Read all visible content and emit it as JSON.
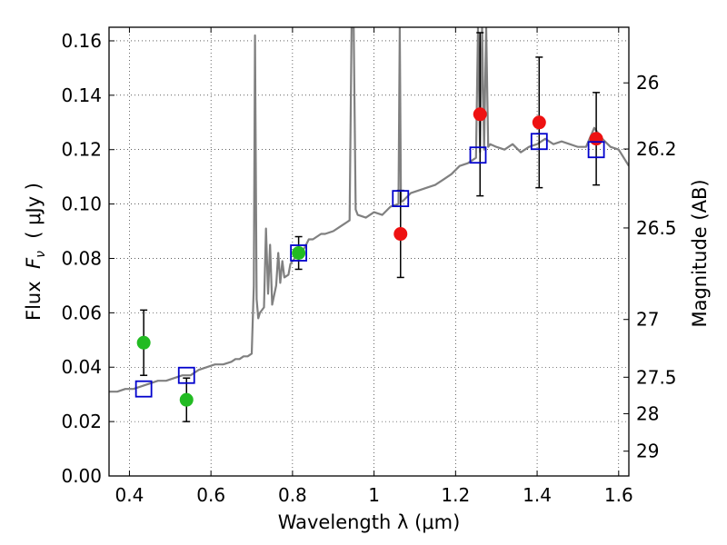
{
  "chart_data": {
    "type": "scatter",
    "xlabel": "Wavelength  λ (μm)",
    "ylabel_text": "Flux  ",
    "ylabel_symbol": "F",
    "ylabel_subscript": "ν",
    "ylabel_unit": "  ( μJy )",
    "y2label": "Magnitude (AB)",
    "xlim": [
      0.35,
      1.625
    ],
    "ylim": [
      0.0,
      0.165
    ],
    "xticks": [
      0.4,
      0.6,
      0.8,
      1.0,
      1.2,
      1.4,
      1.6
    ],
    "xtick_labels": [
      "0.4",
      "0.6",
      "0.8",
      "1",
      "1.2",
      "1.4",
      "1.6"
    ],
    "yticks": [
      0.0,
      0.02,
      0.04,
      0.06,
      0.08,
      0.1,
      0.12,
      0.14,
      0.16
    ],
    "ytick_labels": [
      "0.00",
      "0.02",
      "0.04",
      "0.06",
      "0.08",
      "0.10",
      "0.12",
      "0.14",
      "0.16"
    ],
    "y2ticks": [
      26,
      26.2,
      26.5,
      27,
      27.5,
      28,
      29
    ],
    "y2tick_labels": [
      "26",
      "26.2",
      "26.5",
      "27",
      "27.5",
      "28",
      "29"
    ],
    "grid": true,
    "colors": {
      "model": "#808080",
      "optical_points": "#22bb22",
      "nir_points": "#ee1111",
      "model_boxes": "#0000cc",
      "errorbar": "#000000"
    },
    "model_spectrum": {
      "x": [
        0.35,
        0.37,
        0.39,
        0.41,
        0.43,
        0.45,
        0.47,
        0.49,
        0.51,
        0.53,
        0.55,
        0.57,
        0.59,
        0.61,
        0.63,
        0.65,
        0.66,
        0.67,
        0.68,
        0.69,
        0.7,
        0.705,
        0.708,
        0.712,
        0.716,
        0.72,
        0.73,
        0.735,
        0.74,
        0.745,
        0.75,
        0.76,
        0.765,
        0.77,
        0.775,
        0.78,
        0.79,
        0.795,
        0.8,
        0.81,
        0.82,
        0.83,
        0.84,
        0.85,
        0.86,
        0.87,
        0.88,
        0.9,
        0.92,
        0.94,
        0.945,
        0.95,
        0.955,
        0.96,
        0.98,
        1.0,
        1.02,
        1.04,
        1.06,
        1.063,
        1.066,
        1.07,
        1.09,
        1.11,
        1.13,
        1.15,
        1.17,
        1.19,
        1.21,
        1.23,
        1.25,
        1.255,
        1.26,
        1.265,
        1.27,
        1.275,
        1.28,
        1.285,
        1.3,
        1.32,
        1.34,
        1.36,
        1.38,
        1.4,
        1.42,
        1.44,
        1.46,
        1.48,
        1.5,
        1.52,
        1.54,
        1.56,
        1.58,
        1.6,
        1.625
      ],
      "y": [
        0.031,
        0.031,
        0.032,
        0.032,
        0.033,
        0.034,
        0.035,
        0.035,
        0.036,
        0.037,
        0.037,
        0.039,
        0.04,
        0.041,
        0.041,
        0.042,
        0.043,
        0.043,
        0.044,
        0.044,
        0.045,
        0.07,
        0.162,
        0.065,
        0.058,
        0.06,
        0.062,
        0.091,
        0.067,
        0.085,
        0.063,
        0.07,
        0.082,
        0.071,
        0.079,
        0.073,
        0.074,
        0.078,
        0.079,
        0.081,
        0.082,
        0.084,
        0.087,
        0.087,
        0.088,
        0.089,
        0.089,
        0.09,
        0.092,
        0.094,
        0.165,
        0.165,
        0.098,
        0.096,
        0.095,
        0.097,
        0.096,
        0.099,
        0.1,
        0.165,
        0.101,
        0.101,
        0.104,
        0.105,
        0.106,
        0.107,
        0.109,
        0.111,
        0.114,
        0.115,
        0.117,
        0.165,
        0.119,
        0.165,
        0.12,
        0.165,
        0.121,
        0.122,
        0.121,
        0.12,
        0.122,
        0.119,
        0.121,
        0.122,
        0.124,
        0.122,
        0.123,
        0.122,
        0.121,
        0.121,
        0.128,
        0.124,
        0.121,
        0.12,
        0.114
      ]
    },
    "series": [
      {
        "marker": "circle-green",
        "x": [
          0.435,
          0.54,
          0.815
        ],
        "y": [
          0.049,
          0.028,
          0.082
        ],
        "yerr": [
          0.012,
          0.008,
          0.006
        ]
      },
      {
        "marker": "circle-red",
        "x": [
          1.065,
          1.26,
          1.405,
          1.545
        ],
        "y": [
          0.089,
          0.133,
          0.13,
          0.124
        ],
        "yerr": [
          0.016,
          0.03,
          0.024,
          0.017
        ]
      },
      {
        "marker": "square-blue",
        "x": [
          0.435,
          0.54,
          0.815,
          1.065,
          1.255,
          1.405,
          1.545
        ],
        "y": [
          0.032,
          0.037,
          0.082,
          0.102,
          0.118,
          0.123,
          0.12
        ]
      }
    ]
  }
}
